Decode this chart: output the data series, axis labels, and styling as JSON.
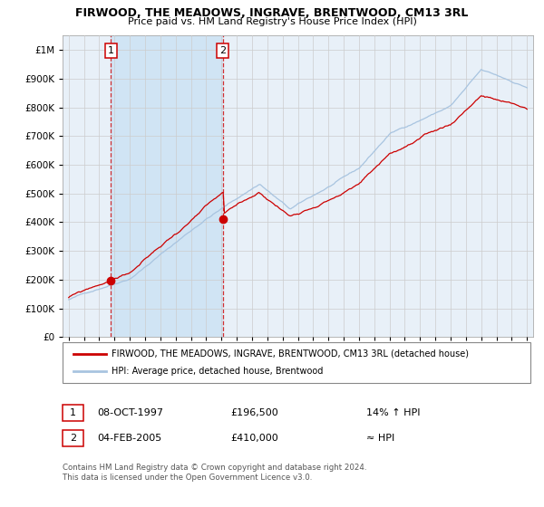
{
  "title": "FIRWOOD, THE MEADOWS, INGRAVE, BRENTWOOD, CM13 3RL",
  "subtitle": "Price paid vs. HM Land Registry's House Price Index (HPI)",
  "yticks": [
    0,
    100000,
    200000,
    300000,
    400000,
    500000,
    600000,
    700000,
    800000,
    900000,
    1000000
  ],
  "ylim": [
    0,
    1050000
  ],
  "xlim_start": 1994.6,
  "xlim_end": 2025.4,
  "xticks": [
    1995,
    1996,
    1997,
    1998,
    1999,
    2000,
    2001,
    2002,
    2003,
    2004,
    2005,
    2006,
    2007,
    2008,
    2009,
    2010,
    2011,
    2012,
    2013,
    2014,
    2015,
    2016,
    2017,
    2018,
    2019,
    2020,
    2021,
    2022,
    2023,
    2024,
    2025
  ],
  "hpi_color": "#a8c4e0",
  "price_color": "#cc0000",
  "dot_color": "#cc0000",
  "grid_color": "#cccccc",
  "bg_color": "#e8f0f8",
  "shade_color": "#d0e4f4",
  "marker1_year": 1997.77,
  "marker1_value": 196500,
  "marker1_label": "1",
  "marker1_date": "08-OCT-1997",
  "marker1_price": "£196,500",
  "marker1_hpi": "14% ↑ HPI",
  "marker2_year": 2005.09,
  "marker2_value": 410000,
  "marker2_label": "2",
  "marker2_date": "04-FEB-2005",
  "marker2_price": "£410,000",
  "marker2_hpi": "≈ HPI",
  "legend_label1": "FIRWOOD, THE MEADOWS, INGRAVE, BRENTWOOD, CM13 3RL (detached house)",
  "legend_label2": "HPI: Average price, detached house, Brentwood",
  "footnote": "Contains HM Land Registry data © Crown copyright and database right 2024.\nThis data is licensed under the Open Government Licence v3.0."
}
